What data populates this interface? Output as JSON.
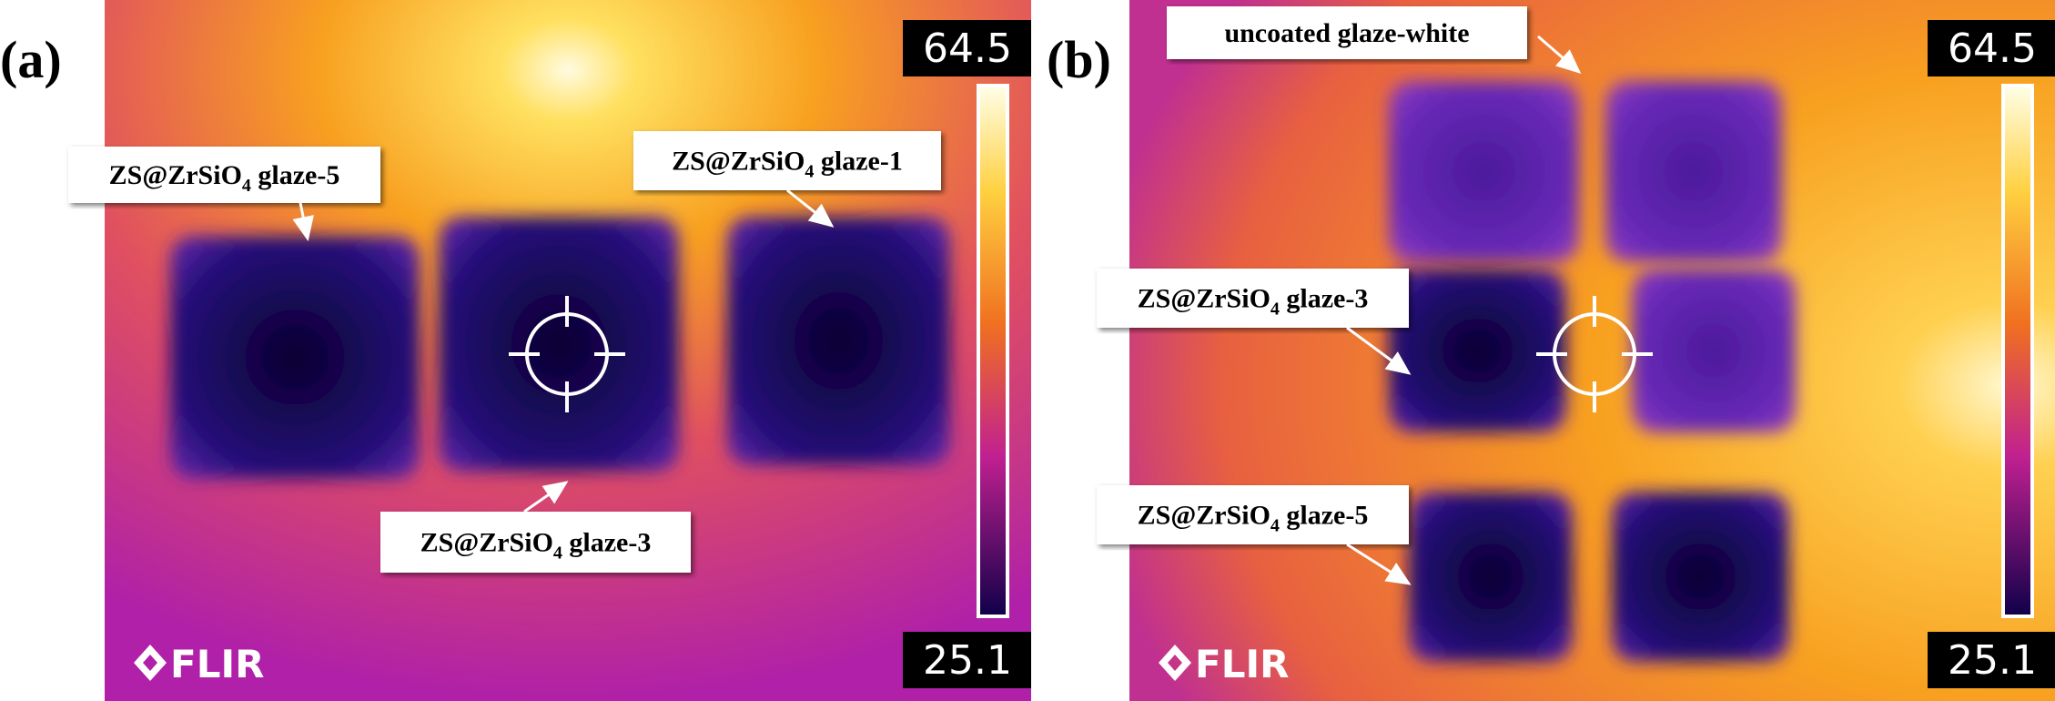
{
  "panels": [
    {
      "label": "(a)",
      "scale_max": 64.5,
      "scale_min": 25.1,
      "logo": "FLIR",
      "annotations": [
        {
          "text": "ZS@ZrSiO",
          "sub": "4",
          "rest": " glaze-5"
        },
        {
          "text": "ZS@ZrSiO",
          "sub": "4",
          "rest": " glaze-1"
        },
        {
          "text": "ZS@ZrSiO",
          "sub": "4",
          "rest": " glaze-3"
        }
      ]
    },
    {
      "label": "(b)",
      "scale_max": 64.5,
      "scale_min": 25.1,
      "logo": "FLIR",
      "annotations": [
        {
          "text": "uncoated glaze-white"
        },
        {
          "text": "ZS@ZrSiO",
          "sub": "4",
          "rest": " glaze-3"
        },
        {
          "text": "ZS@ZrSiO",
          "sub": "4",
          "rest": " glaze-5"
        }
      ]
    }
  ]
}
